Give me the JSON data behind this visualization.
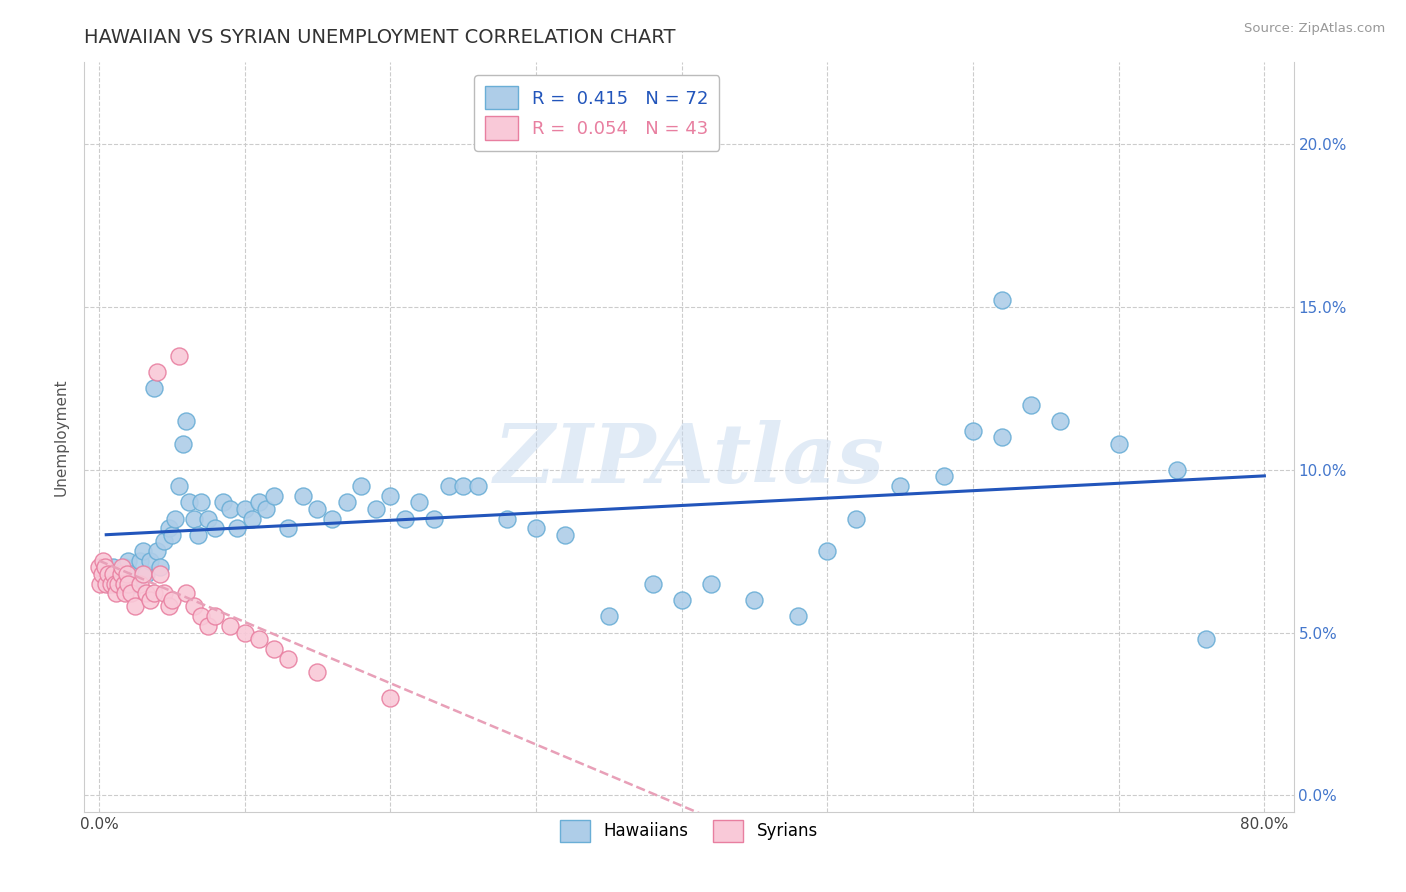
{
  "title": "HAWAIIAN VS SYRIAN UNEMPLOYMENT CORRELATION CHART",
  "source": "Source: ZipAtlas.com",
  "ylabel": "Unemployment",
  "xlim": [
    -0.01,
    0.82
  ],
  "ylim": [
    -0.005,
    0.225
  ],
  "xtick_positions": [
    0.0,
    0.1,
    0.2,
    0.3,
    0.4,
    0.5,
    0.6,
    0.7,
    0.8
  ],
  "xtick_labels_show": [
    "0.0%",
    "",
    "",
    "",
    "",
    "",
    "",
    "",
    "80.0%"
  ],
  "ytick_positions": [
    0.0,
    0.05,
    0.1,
    0.15,
    0.2
  ],
  "right_ytick_labels": [
    "0.0%",
    "5.0%",
    "10.0%",
    "15.0%",
    "20.0%"
  ],
  "hawaiian_R": 0.415,
  "hawaiian_N": 72,
  "syrian_R": 0.054,
  "syrian_N": 43,
  "hawaiian_color": "#aecde8",
  "hawaiian_edge": "#6aaed6",
  "syrian_color": "#f9c9d8",
  "syrian_edge": "#e87fa0",
  "trend_hawaiian_color": "#2255bb",
  "trend_syrian_color": "#e8a0b8",
  "watermark": "ZIPAtlas",
  "hawaiian_x": [
    0.005,
    0.007,
    0.01,
    0.012,
    0.015,
    0.018,
    0.02,
    0.022,
    0.025,
    0.028,
    0.03,
    0.032,
    0.035,
    0.038,
    0.04,
    0.042,
    0.045,
    0.048,
    0.05,
    0.052,
    0.055,
    0.058,
    0.06,
    0.062,
    0.065,
    0.068,
    0.07,
    0.075,
    0.08,
    0.085,
    0.09,
    0.095,
    0.1,
    0.105,
    0.11,
    0.115,
    0.12,
    0.13,
    0.14,
    0.15,
    0.16,
    0.17,
    0.18,
    0.19,
    0.2,
    0.21,
    0.22,
    0.23,
    0.24,
    0.25,
    0.26,
    0.28,
    0.3,
    0.32,
    0.35,
    0.38,
    0.4,
    0.42,
    0.45,
    0.48,
    0.5,
    0.52,
    0.55,
    0.58,
    0.6,
    0.62,
    0.64,
    0.66,
    0.7,
    0.74,
    0.76,
    0.62
  ],
  "hawaiian_y": [
    0.068,
    0.065,
    0.07,
    0.065,
    0.068,
    0.07,
    0.072,
    0.068,
    0.065,
    0.072,
    0.075,
    0.068,
    0.072,
    0.125,
    0.075,
    0.07,
    0.078,
    0.082,
    0.08,
    0.085,
    0.095,
    0.108,
    0.115,
    0.09,
    0.085,
    0.08,
    0.09,
    0.085,
    0.082,
    0.09,
    0.088,
    0.082,
    0.088,
    0.085,
    0.09,
    0.088,
    0.092,
    0.082,
    0.092,
    0.088,
    0.085,
    0.09,
    0.095,
    0.088,
    0.092,
    0.085,
    0.09,
    0.085,
    0.095,
    0.095,
    0.095,
    0.085,
    0.082,
    0.08,
    0.055,
    0.065,
    0.06,
    0.065,
    0.06,
    0.055,
    0.075,
    0.085,
    0.095,
    0.098,
    0.112,
    0.11,
    0.12,
    0.115,
    0.108,
    0.1,
    0.048,
    0.152
  ],
  "syrian_x": [
    0.0,
    0.001,
    0.002,
    0.003,
    0.004,
    0.005,
    0.006,
    0.008,
    0.01,
    0.011,
    0.012,
    0.013,
    0.015,
    0.016,
    0.017,
    0.018,
    0.019,
    0.02,
    0.022,
    0.025,
    0.028,
    0.03,
    0.032,
    0.035,
    0.038,
    0.04,
    0.042,
    0.045,
    0.048,
    0.05,
    0.055,
    0.06,
    0.065,
    0.07,
    0.075,
    0.08,
    0.09,
    0.1,
    0.11,
    0.12,
    0.13,
    0.15,
    0.2
  ],
  "syrian_y": [
    0.07,
    0.065,
    0.068,
    0.072,
    0.07,
    0.065,
    0.068,
    0.065,
    0.068,
    0.065,
    0.062,
    0.065,
    0.068,
    0.07,
    0.065,
    0.062,
    0.068,
    0.065,
    0.062,
    0.058,
    0.065,
    0.068,
    0.062,
    0.06,
    0.062,
    0.13,
    0.068,
    0.062,
    0.058,
    0.06,
    0.135,
    0.062,
    0.058,
    0.055,
    0.052,
    0.055,
    0.052,
    0.05,
    0.048,
    0.045,
    0.042,
    0.038,
    0.03
  ],
  "background_color": "#ffffff",
  "grid_color": "#cccccc",
  "title_fontsize": 14,
  "axis_label_fontsize": 11,
  "tick_fontsize": 11,
  "legend_fontsize": 12,
  "right_tick_color": "#4477cc"
}
